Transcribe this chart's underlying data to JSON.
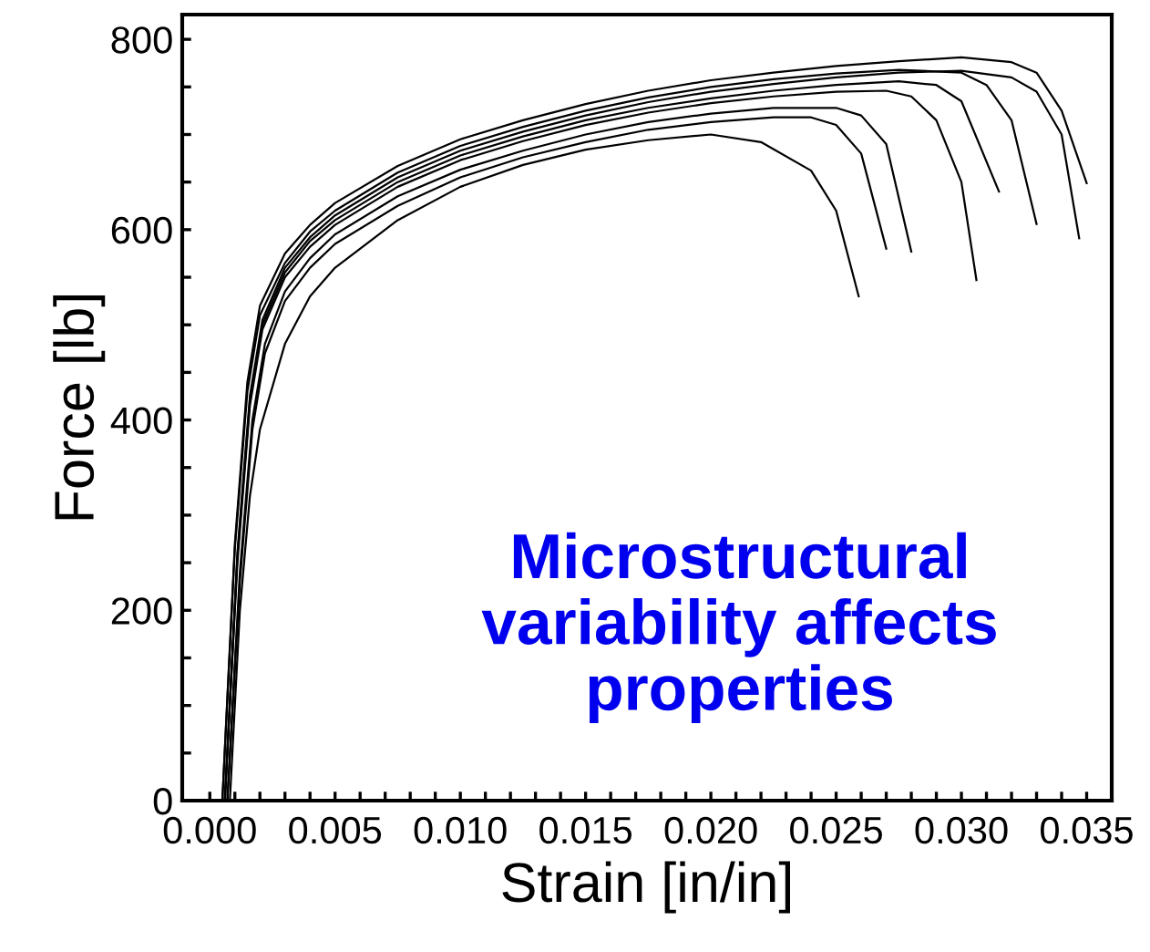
{
  "chart_data": {
    "type": "line",
    "xlabel": "Strain [in/in]",
    "ylabel": "Force [lb]",
    "annotations": [
      "Microstructural\nvariability affects\nproperties"
    ],
    "xlim": [
      -0.0011,
      0.036
    ],
    "ylim": [
      0,
      826
    ],
    "xticks": [
      {
        "value": 0,
        "label": "0.000"
      },
      {
        "value": 0.001,
        "label": null
      },
      {
        "value": 0.002,
        "label": null
      },
      {
        "value": 0.003,
        "label": null
      },
      {
        "value": 0.004,
        "label": null
      },
      {
        "value": 0.005,
        "label": "0.005"
      },
      {
        "value": 0.006,
        "label": null
      },
      {
        "value": 0.007,
        "label": null
      },
      {
        "value": 0.008,
        "label": null
      },
      {
        "value": 0.009,
        "label": null
      },
      {
        "value": 0.01,
        "label": "0.010"
      },
      {
        "value": 0.011,
        "label": null
      },
      {
        "value": 0.012,
        "label": null
      },
      {
        "value": 0.013,
        "label": null
      },
      {
        "value": 0.014,
        "label": null
      },
      {
        "value": 0.015,
        "label": "0.015"
      },
      {
        "value": 0.016,
        "label": null
      },
      {
        "value": 0.017,
        "label": null
      },
      {
        "value": 0.018,
        "label": null
      },
      {
        "value": 0.019,
        "label": null
      },
      {
        "value": 0.02,
        "label": "0.020"
      },
      {
        "value": 0.021,
        "label": null
      },
      {
        "value": 0.022,
        "label": null
      },
      {
        "value": 0.023,
        "label": null
      },
      {
        "value": 0.024,
        "label": null
      },
      {
        "value": 0.025,
        "label": "0.025"
      },
      {
        "value": 0.026,
        "label": null
      },
      {
        "value": 0.027,
        "label": null
      },
      {
        "value": 0.028,
        "label": null
      },
      {
        "value": 0.029,
        "label": null
      },
      {
        "value": 0.03,
        "label": "0.030"
      },
      {
        "value": 0.031,
        "label": null
      },
      {
        "value": 0.032,
        "label": null
      },
      {
        "value": 0.033,
        "label": null
      },
      {
        "value": 0.034,
        "label": null
      },
      {
        "value": 0.035,
        "label": "0.035"
      }
    ],
    "yticks": [
      0,
      {
        "value": 50,
        "label": null
      },
      {
        "value": 100,
        "label": null
      },
      {
        "value": 150,
        "label": null
      },
      200,
      {
        "value": 250,
        "label": null
      },
      {
        "value": 300,
        "label": null
      },
      {
        "value": 350,
        "label": null
      },
      400,
      {
        "value": 450,
        "label": null
      },
      {
        "value": 500,
        "label": null
      },
      {
        "value": 550,
        "label": null
      },
      600,
      {
        "value": 650,
        "label": null
      },
      {
        "value": 700,
        "label": null
      },
      {
        "value": 750,
        "label": null
      },
      800
    ],
    "grid": false,
    "legend": false,
    "marker": "none",
    "line_style": "solid",
    "series": [
      {
        "color": "#000000",
        "x": [
          0.0005,
          0.001,
          0.0015,
          0.002,
          0.003,
          0.004,
          0.005,
          0.0075,
          0.01,
          0.0125,
          0.015,
          0.0175,
          0.02,
          0.0225,
          0.025,
          0.0275,
          0.03,
          0.032,
          0.033,
          0.034,
          0.035
        ],
        "values": [
          0,
          270,
          440,
          520,
          575,
          605,
          628,
          667,
          695,
          715,
          732,
          746,
          757,
          765,
          772,
          777,
          781,
          776,
          765,
          725,
          649
        ]
      },
      {
        "color": "#000000",
        "x": [
          0.0006,
          0.0011,
          0.0016,
          0.0021,
          0.003,
          0.004,
          0.005,
          0.0075,
          0.01,
          0.0125,
          0.015,
          0.0175,
          0.02,
          0.0225,
          0.025,
          0.0275,
          0.03,
          0.032,
          0.033,
          0.034,
          0.0347
        ],
        "values": [
          0,
          260,
          425,
          505,
          560,
          592,
          615,
          655,
          683,
          703,
          720,
          734,
          745,
          753,
          760,
          765,
          767,
          760,
          745,
          700,
          591
        ]
      },
      {
        "color": "#000000",
        "x": [
          0.0006,
          0.0011,
          0.0016,
          0.0021,
          0.003,
          0.004,
          0.005,
          0.0075,
          0.01,
          0.0125,
          0.015,
          0.0175,
          0.02,
          0.0225,
          0.025,
          0.027,
          0.028,
          0.029,
          0.03,
          0.0306
        ],
        "values": [
          0,
          250,
          415,
          495,
          550,
          582,
          605,
          645,
          673,
          693,
          710,
          723,
          733,
          740,
          745,
          746,
          740,
          715,
          650,
          547
        ]
      },
      {
        "color": "#000000",
        "x": [
          0.0008,
          0.0012,
          0.0016,
          0.002,
          0.003,
          0.004,
          0.005,
          0.0075,
          0.01,
          0.0125,
          0.015,
          0.0175,
          0.02,
          0.022,
          0.024,
          0.025,
          0.0259
        ],
        "values": [
          0,
          200,
          320,
          390,
          480,
          530,
          560,
          610,
          645,
          668,
          684,
          694,
          700,
          692,
          662,
          620,
          530
        ]
      },
      {
        "color": "#000000",
        "x": [
          0.0007,
          0.0012,
          0.0017,
          0.0022,
          0.003,
          0.004,
          0.005,
          0.0075,
          0.01,
          0.0125,
          0.015,
          0.0175,
          0.02,
          0.0225,
          0.025,
          0.026,
          0.027,
          0.028
        ],
        "values": [
          0,
          240,
          400,
          480,
          535,
          570,
          595,
          635,
          663,
          683,
          700,
          713,
          722,
          728,
          728,
          720,
          690,
          577
        ]
      },
      {
        "color": "#000000",
        "x": [
          0.0005,
          0.001,
          0.0015,
          0.002,
          0.003,
          0.004,
          0.005,
          0.0075,
          0.01,
          0.0125,
          0.015,
          0.0175,
          0.02,
          0.0225,
          0.025,
          0.0275,
          0.03,
          0.031,
          0.032,
          0.033
        ],
        "values": [
          0,
          265,
          430,
          510,
          565,
          598,
          620,
          660,
          688,
          708,
          725,
          739,
          750,
          758,
          764,
          768,
          765,
          752,
          715,
          606
        ]
      },
      {
        "color": "#000000",
        "x": [
          0.0006,
          0.0011,
          0.0016,
          0.0021,
          0.003,
          0.004,
          0.005,
          0.0075,
          0.01,
          0.0125,
          0.015,
          0.0175,
          0.02,
          0.0225,
          0.025,
          0.0275,
          0.029,
          0.03,
          0.0315
        ],
        "values": [
          0,
          255,
          420,
          500,
          555,
          588,
          610,
          650,
          678,
          698,
          715,
          728,
          738,
          746,
          752,
          756,
          752,
          735,
          640
        ]
      },
      {
        "color": "#000000",
        "x": [
          0.0007,
          0.0012,
          0.0017,
          0.0022,
          0.003,
          0.004,
          0.005,
          0.0075,
          0.01,
          0.0125,
          0.015,
          0.0175,
          0.02,
          0.0225,
          0.024,
          0.025,
          0.026,
          0.027
        ],
        "values": [
          0,
          230,
          390,
          470,
          525,
          560,
          585,
          625,
          655,
          676,
          692,
          705,
          713,
          718,
          718,
          710,
          680,
          580
        ]
      }
    ]
  }
}
